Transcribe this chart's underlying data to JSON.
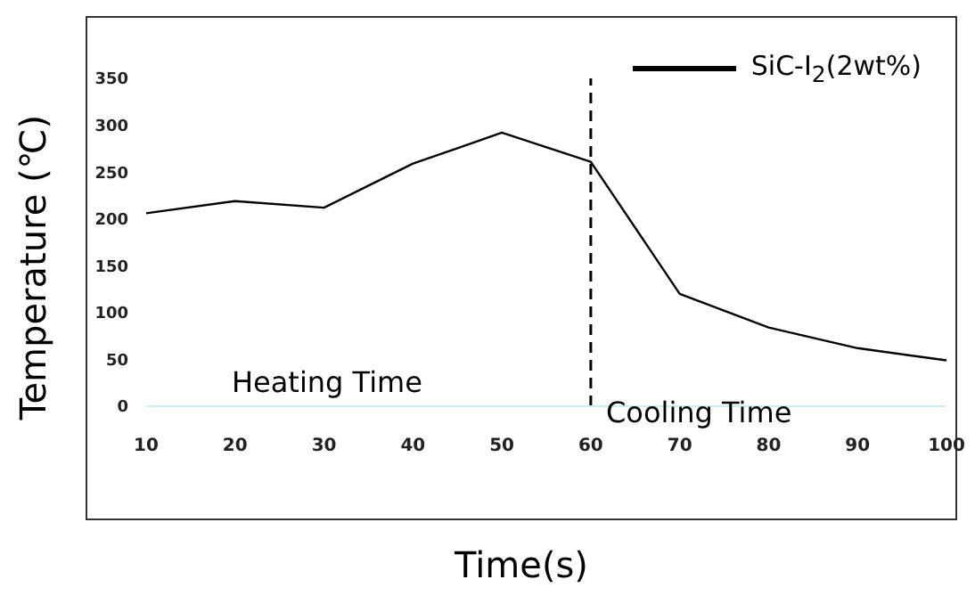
{
  "chart_data": {
    "type": "line",
    "xlabel": "Time(s)",
    "ylabel": "Temperature (℃)",
    "categories": [
      "10",
      "20",
      "30",
      "40",
      "50",
      "60",
      "70",
      "80",
      "90",
      "100"
    ],
    "series": [
      {
        "name": "SiC-I$_{2}$(2wt%)",
        "color": "#000000",
        "values": [
          206,
          219,
          212,
          259,
          292,
          261,
          120,
          84,
          62,
          49
        ]
      }
    ],
    "ylim": [
      0,
      350
    ],
    "yticks": [
      0,
      50,
      100,
      150,
      200,
      250,
      300,
      350
    ],
    "ref_lines": [
      {
        "axis": "x",
        "value": "60",
        "line_style": "dashed",
        "color": "#000000"
      }
    ],
    "annotations": [
      "Heating Time",
      "Cooling Time"
    ],
    "legend": "top right",
    "marker": "none",
    "line_style": "solid",
    "grid": false
  }
}
